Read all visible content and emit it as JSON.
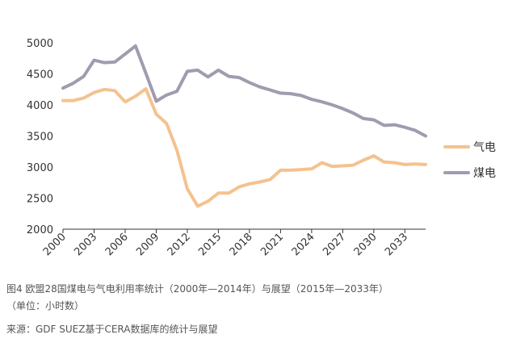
{
  "chart_data": {
    "type": "line",
    "title": "",
    "xlabel": "",
    "ylabel": "",
    "ylim": [
      2000,
      5000
    ],
    "yticks": [
      2000,
      2500,
      3000,
      3500,
      4000,
      4500,
      5000
    ],
    "x": [
      2000,
      2001,
      2002,
      2003,
      2004,
      2005,
      2006,
      2007,
      2008,
      2009,
      2010,
      2011,
      2012,
      2013,
      2014,
      2015,
      2016,
      2017,
      2018,
      2019,
      2020,
      2021,
      2022,
      2023,
      2024,
      2025,
      2026,
      2027,
      2028,
      2029,
      2030,
      2031,
      2032,
      2033,
      2034,
      2035
    ],
    "xticks": [
      2000,
      2003,
      2006,
      2009,
      2012,
      2015,
      2018,
      2021,
      2024,
      2027,
      2030,
      2033
    ],
    "series": [
      {
        "name": "气电",
        "color": "#f4c28f",
        "values": [
          4070,
          4070,
          4110,
          4200,
          4250,
          4230,
          4050,
          4140,
          4260,
          3850,
          3700,
          3270,
          2650,
          2370,
          2450,
          2580,
          2580,
          2680,
          2730,
          2760,
          2800,
          2950,
          2950,
          2960,
          2970,
          3070,
          3010,
          3020,
          3030,
          3110,
          3180,
          3080,
          3070,
          3040,
          3050,
          3040
        ]
      },
      {
        "name": "煤电",
        "color": "#a09caf",
        "values": [
          4270,
          4350,
          4460,
          4720,
          4680,
          4690,
          4820,
          4950,
          4510,
          4060,
          4160,
          4220,
          4540,
          4560,
          4450,
          4560,
          4460,
          4440,
          4360,
          4290,
          4240,
          4190,
          4180,
          4150,
          4090,
          4050,
          4000,
          3940,
          3870,
          3780,
          3760,
          3670,
          3680,
          3640,
          3590,
          3500
        ]
      }
    ]
  },
  "caption": {
    "line1": "图4 欧盟28国煤电与气电利用率统计（2000年—2014年）与展望（2015年—2033年）",
    "line2": "（单位：小时数）",
    "source": "来源：GDF SUEZ基于CERA数据库的统计与展望"
  }
}
